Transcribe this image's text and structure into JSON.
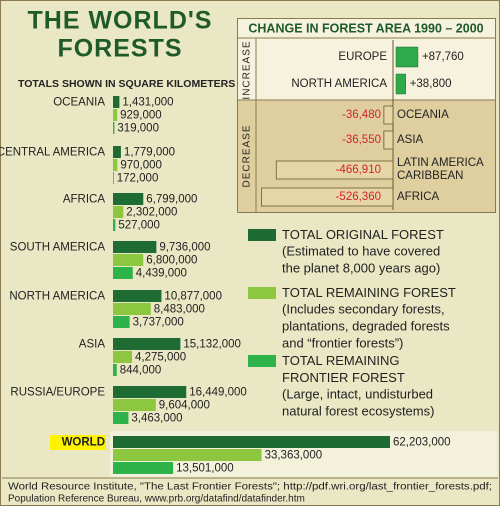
{
  "chart_data": [
    {
      "type": "bar",
      "title": [
        "THE WORLD'S",
        "FORESTS"
      ],
      "subtitle": "TOTALS SHOWN IN SQUARE KILOMETERS",
      "categories": [
        "OCEANIA",
        "CENTRAL AMERICA",
        "AFRICA",
        "SOUTH AMERICA",
        "NORTH AMERICA",
        "ASIA",
        "RUSSIA/EUROPE",
        "WORLD"
      ],
      "series": [
        {
          "name": "TOTAL ORIGINAL FOREST",
          "color": "#1e6b33",
          "description": [
            "(Estimated to have covered",
            "the planet 8,000 years ago)"
          ],
          "values": [
            1431000,
            1779000,
            6799000,
            9736000,
            10877000,
            15132000,
            16449000,
            62203000
          ],
          "value_labels": [
            "1,431,000",
            "1,779,000",
            "6,799,000",
            "9,736,000",
            "10,877,000",
            "15,132,000",
            "16,449,000",
            "62,203,000"
          ]
        },
        {
          "name": "TOTAL REMAINING FOREST",
          "color": "#8dc63f",
          "description": [
            "(Includes secondary forests,",
            "plantations, degraded forests",
            "and “frontier forests”)"
          ],
          "values": [
            929000,
            970000,
            2302000,
            6800000,
            8483000,
            4275000,
            9604000,
            33363000
          ],
          "value_labels": [
            "929,000",
            "970,000",
            "2,302,000",
            "6,800,000",
            "8,483,000",
            "4,275,000",
            "9,604,000",
            "33,363,000"
          ]
        },
        {
          "name": "TOTAL REMAINING FRONTIER FOREST",
          "color": "#2db34a",
          "description": [
            "(Large, intact, undisturbed",
            "natural forest ecosystems)"
          ],
          "values": [
            319000,
            172000,
            527000,
            4439000,
            3737000,
            844000,
            3463000,
            13501000
          ],
          "value_labels": [
            "319,000",
            "172,000",
            "527,000",
            "4,439,000",
            "3,737,000",
            "844,000",
            "3,463,000",
            "13,501,000"
          ]
        }
      ],
      "source": [
        "World Resource Institute, \"The Last Frontier Forests\"; http://pdf.wri.org/last_frontier_forests.pdf;",
        "Population Reference Bureau, www.prb.org/datafind/datafinder.htm"
      ]
    },
    {
      "type": "diverging_bar",
      "title": "CHANGE IN FOREST AREA 1990 – 2000",
      "group_labels": [
        "INCREASE",
        "DECREASE"
      ],
      "categories": [
        "EUROPE",
        "NORTH AMERICA",
        "OCEANIA",
        "ASIA",
        "LATIN AMERICA CARIBBEAN",
        "AFRICA"
      ],
      "values": [
        87760,
        38800,
        -36480,
        -36550,
        -466910,
        -526360
      ],
      "value_labels": [
        "+87,760",
        "+38,800",
        "-36,480",
        "-36,550",
        "-466,910",
        "-526,360"
      ],
      "colors": {
        "increase": "#2eaa4a",
        "decrease": "#e6d5a6"
      }
    }
  ]
}
